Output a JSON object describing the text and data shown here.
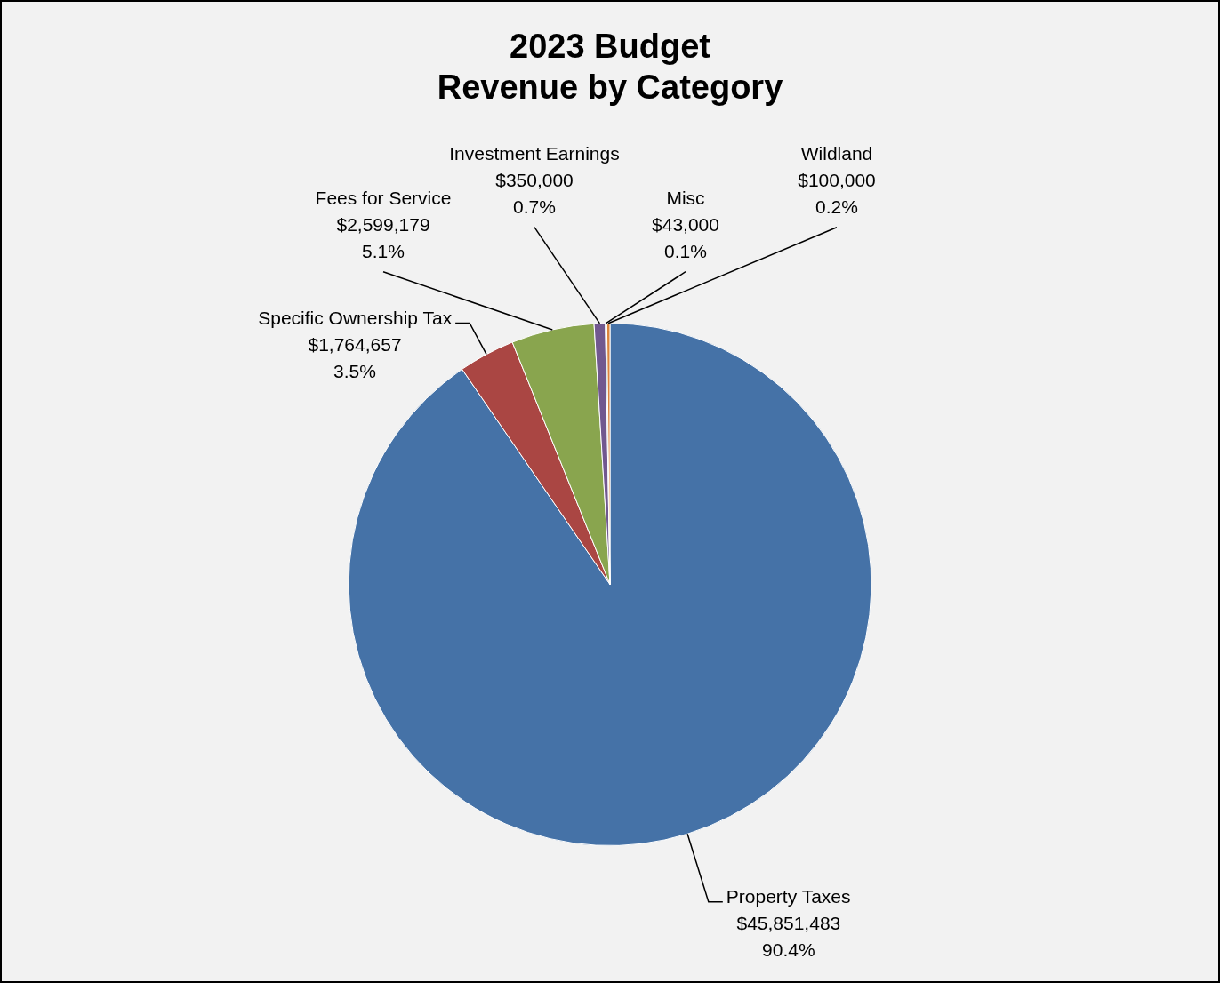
{
  "chart_data": {
    "type": "pie",
    "title": "2023 Budget\nRevenue by Category",
    "categories": [
      "Property Taxes",
      "Specific Ownership Tax",
      "Fees for Service",
      "Investment Earnings",
      "Misc",
      "Wildland"
    ],
    "values": [
      45851483,
      1764657,
      2599179,
      350000,
      43000,
      100000
    ],
    "colors": [
      "#4572a7",
      "#aa4643",
      "#89a54e",
      "#71588f",
      "#4198af",
      "#db843d"
    ],
    "value_labels": [
      "$45,851,483\n90.4%",
      "$1,764,657\n3.5%",
      "$2,599,179\n5.1%",
      "$350,000\n0.7%",
      "$43,000\n0.1%",
      "$100,000\n0.2%"
    ],
    "legend": false
  }
}
